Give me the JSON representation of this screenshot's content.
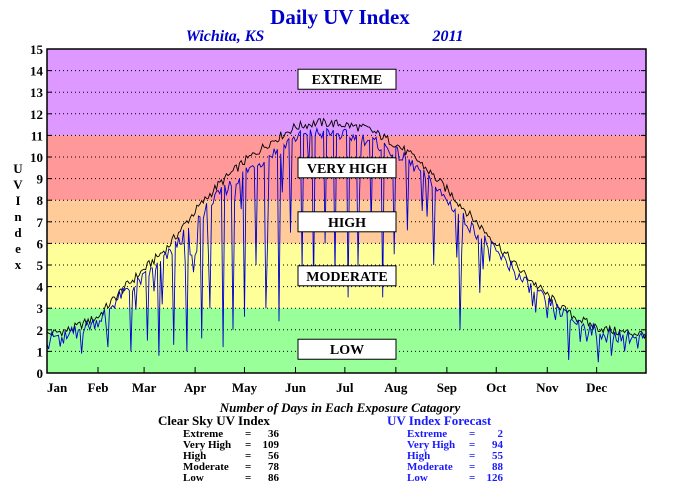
{
  "chart_data": {
    "type": "line",
    "title": "Daily UV Index",
    "subtitle_left": "Wichita, KS",
    "subtitle_right": "2011",
    "ylabel": "UV Index",
    "ylim": [
      0,
      15
    ],
    "yticks": [
      0,
      1,
      2,
      3,
      4,
      5,
      6,
      7,
      8,
      9,
      10,
      11,
      12,
      13,
      14,
      15
    ],
    "xticks": [
      "Jan",
      "Feb",
      "Mar",
      "Apr",
      "May",
      "Jun",
      "Jul",
      "Aug",
      "Sep",
      "Oct",
      "Nov",
      "Dec"
    ],
    "xlim_days": [
      1,
      365
    ],
    "grid": true,
    "bands": [
      {
        "label": "LOW",
        "from": 0,
        "to": 3,
        "color": "#99ff99"
      },
      {
        "label": "MODERATE",
        "from": 3,
        "to": 6,
        "color": "#ffff99"
      },
      {
        "label": "HIGH",
        "from": 6,
        "to": 8,
        "color": "#ffcc99"
      },
      {
        "label": "VERY HIGH",
        "from": 8,
        "to": 11,
        "color": "#ff9999"
      },
      {
        "label": "EXTREME",
        "from": 11,
        "to": 15,
        "color": "#dd99ff"
      }
    ],
    "series": [
      {
        "name": "Clear Sky UV Index",
        "color": "#000000",
        "x": [
          1,
          15,
          32,
          46,
          60,
          74,
          91,
          105,
          121,
          135,
          152,
          166,
          182,
          196,
          213,
          227,
          244,
          258,
          274,
          288,
          305,
          319,
          335,
          349,
          365
        ],
        "y": [
          1.8,
          2.0,
          2.6,
          3.8,
          4.8,
          5.8,
          7.5,
          8.7,
          9.8,
          10.6,
          11.4,
          11.6,
          11.5,
          11.3,
          10.6,
          9.8,
          8.5,
          7.3,
          6.0,
          4.8,
          3.6,
          2.7,
          2.1,
          1.9,
          1.8
        ]
      },
      {
        "name": "UV Index Forecast",
        "color": "#0000cc",
        "x": [
          1,
          15,
          32,
          46,
          60,
          74,
          91,
          105,
          121,
          135,
          152,
          166,
          182,
          196,
          213,
          227,
          244,
          258,
          274,
          288,
          305,
          319,
          335,
          349,
          365
        ],
        "y": [
          1.6,
          1.8,
          2.4,
          3.6,
          4.4,
          5.4,
          7.0,
          8.2,
          9.3,
          10.0,
          10.9,
          11.1,
          11.0,
          10.8,
          10.2,
          9.4,
          8.0,
          6.8,
          5.6,
          4.4,
          3.3,
          2.5,
          1.9,
          1.7,
          1.6
        ],
        "drops": [
          [
            22,
            0.9
          ],
          [
            38,
            1.2
          ],
          [
            52,
            1.0
          ],
          [
            62,
            1.5
          ],
          [
            69,
            0.8
          ],
          [
            78,
            1.3
          ],
          [
            86,
            1.0
          ],
          [
            95,
            1.6
          ],
          [
            100,
            3.0
          ],
          [
            108,
            1.2
          ],
          [
            114,
            2.0
          ],
          [
            121,
            2.6
          ],
          [
            128,
            5.0
          ],
          [
            134,
            3.0
          ],
          [
            142,
            2.4
          ],
          [
            149,
            6.5
          ],
          [
            156,
            4.8
          ],
          [
            163,
            4.0
          ],
          [
            170,
            6.0
          ],
          [
            176,
            4.5
          ],
          [
            184,
            3.5
          ],
          [
            190,
            5.0
          ],
          [
            198,
            6.8
          ],
          [
            205,
            3.5
          ],
          [
            212,
            5.5
          ],
          [
            220,
            6.6
          ],
          [
            229,
            7.5
          ],
          [
            236,
            5.0
          ],
          [
            252,
            2.0
          ],
          [
            266,
            4.8
          ],
          [
            283,
            5.2
          ],
          [
            298,
            2.8
          ],
          [
            318,
            0.6
          ],
          [
            336,
            0.5
          ],
          [
            344,
            0.8
          ],
          [
            352,
            1.0
          ]
        ]
      }
    ],
    "summary_title": "Number of Days in Each Exposure Catagory",
    "summary": [
      {
        "name": "Clear Sky UV Index",
        "rows": [
          {
            "label": "Extreme",
            "value": "36"
          },
          {
            "label": "Very High",
            "value": "109"
          },
          {
            "label": "High",
            "value": "56"
          },
          {
            "label": "Moderate",
            "value": "78"
          },
          {
            "label": "Low",
            "value": "86"
          }
        ]
      },
      {
        "name": "UV Index Forecast",
        "rows": [
          {
            "label": "Extreme",
            "value": "2"
          },
          {
            "label": "Very High",
            "value": "94"
          },
          {
            "label": "High",
            "value": "55"
          },
          {
            "label": "Moderate",
            "value": "88"
          },
          {
            "label": "Low",
            "value": "126"
          }
        ]
      }
    ]
  }
}
